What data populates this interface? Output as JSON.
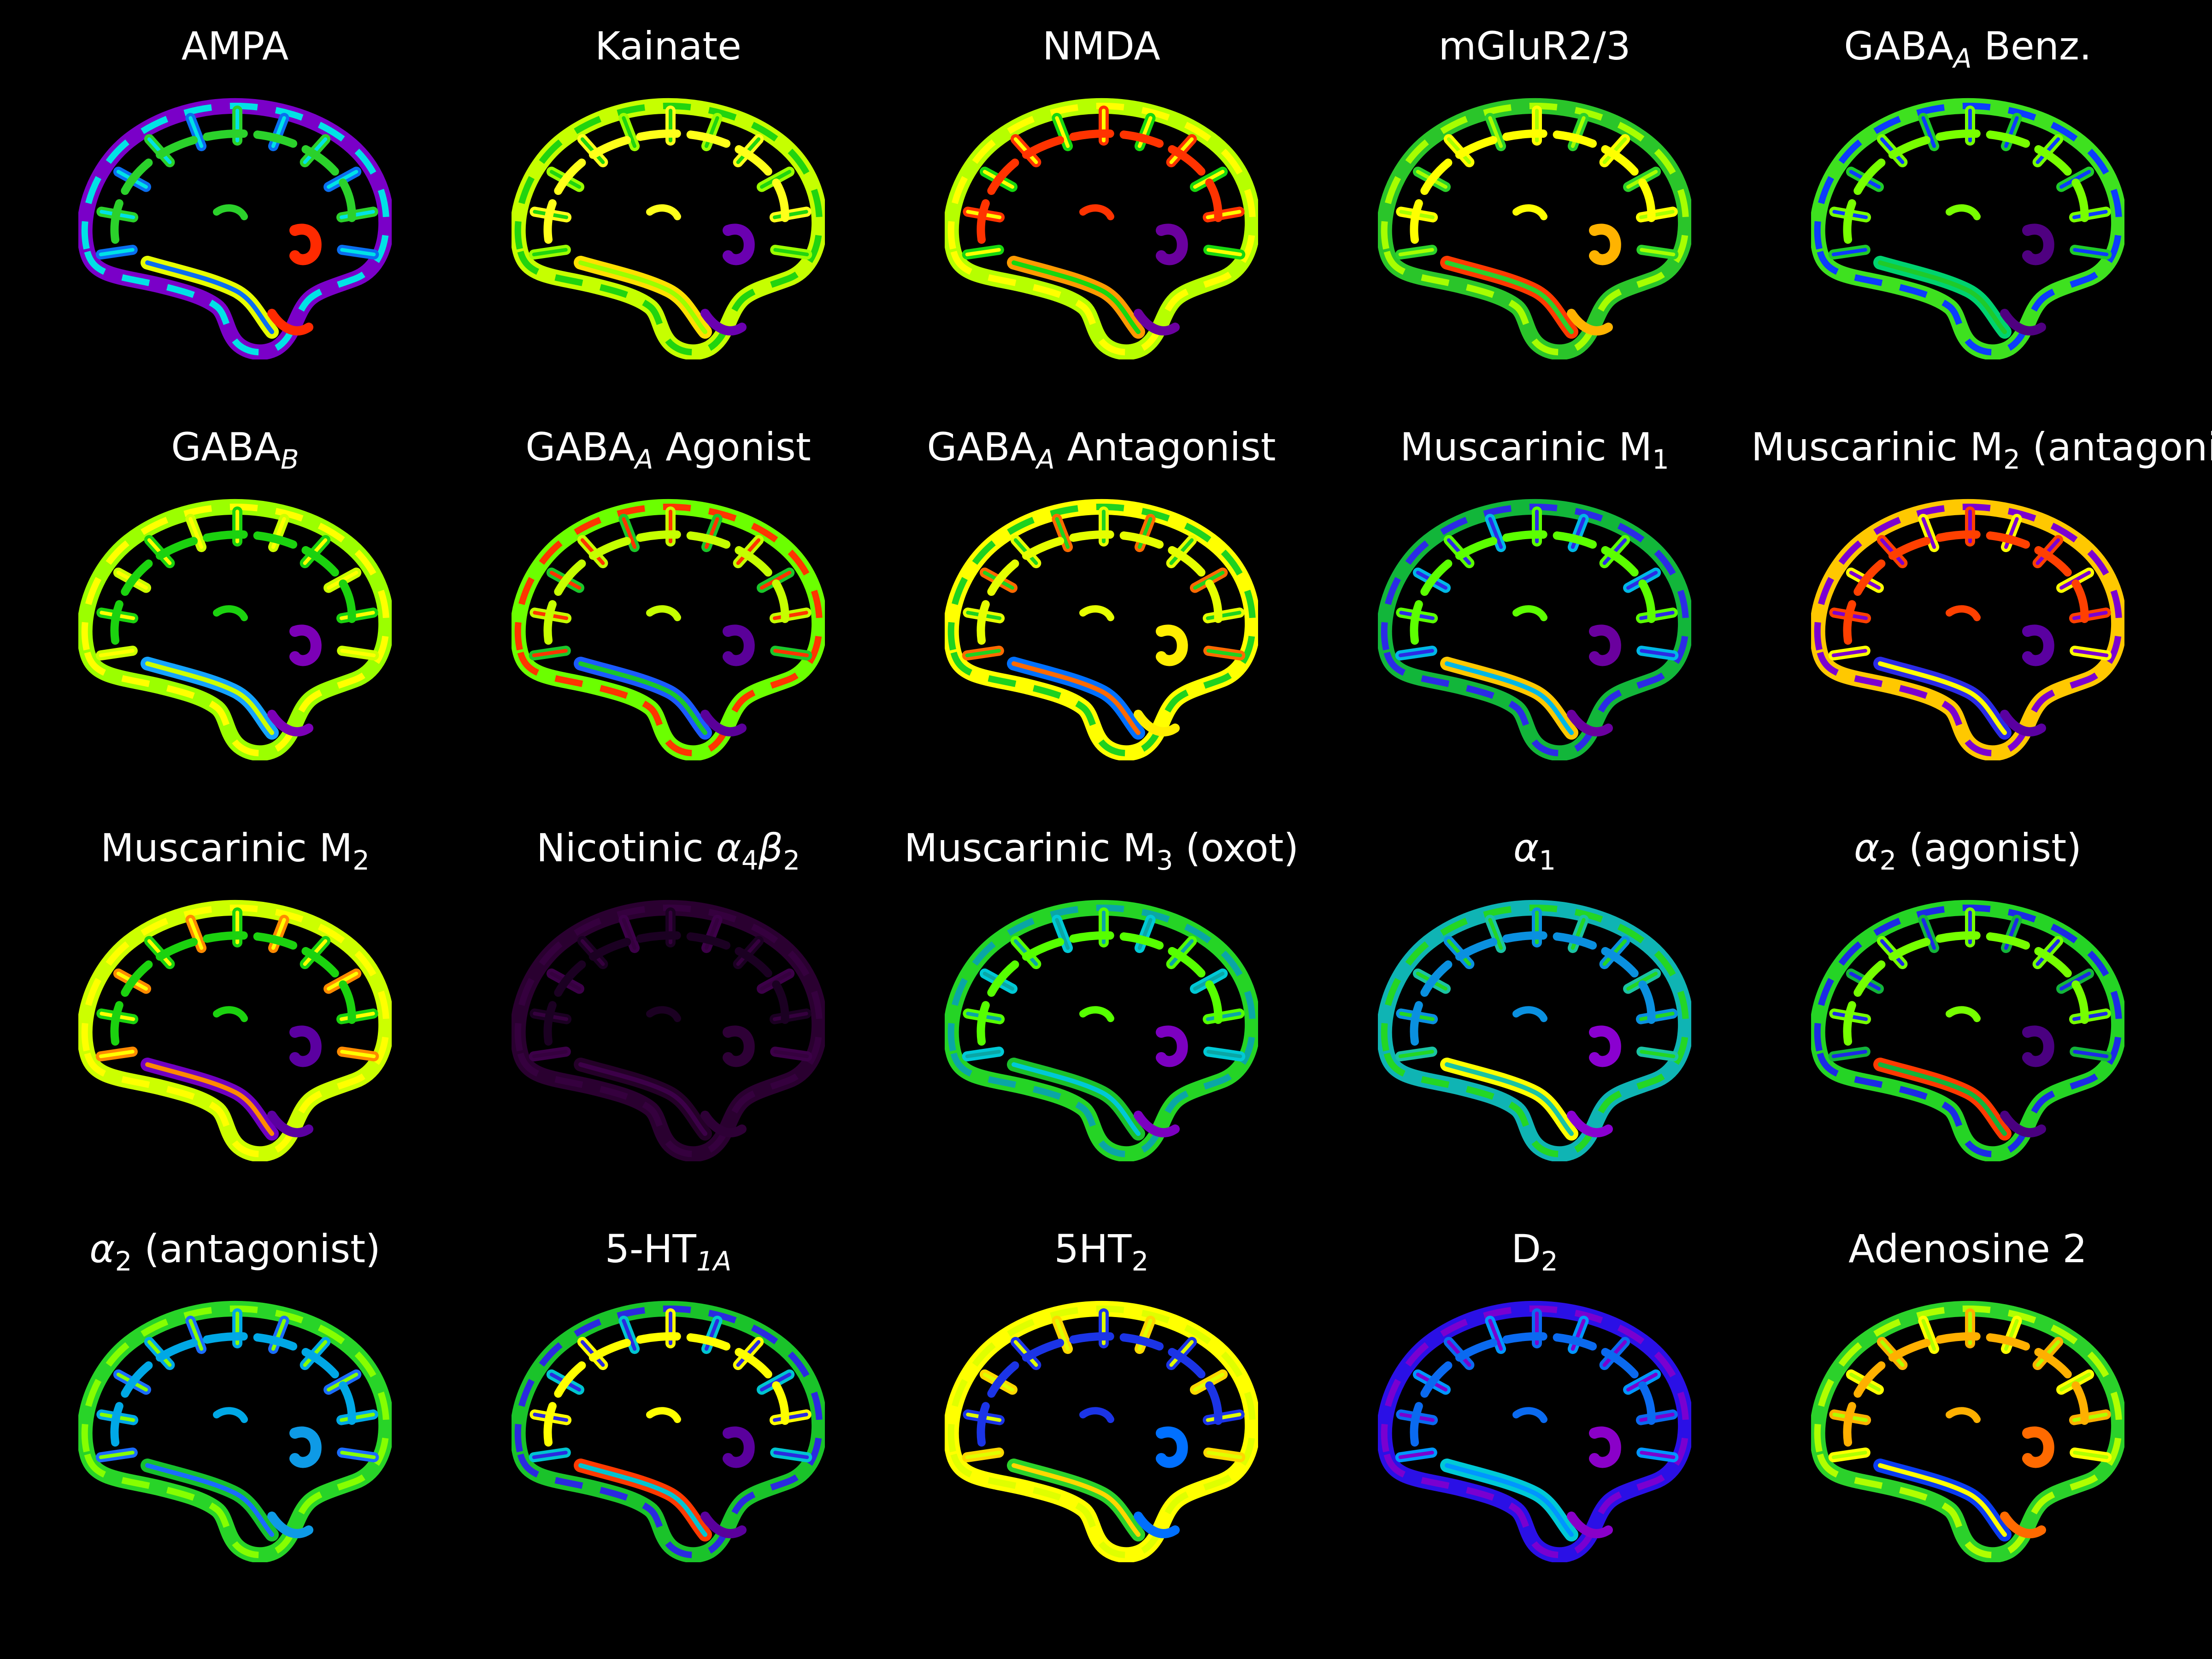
{
  "panels": [
    {
      "title": {
        "pre": "AMPA",
        "sub": "",
        "post": ""
      },
      "colors": {
        "outer": "#7a00c8",
        "band1": "#00e2e6",
        "band2": "#2bd12b",
        "band3": "#0a6ef0",
        "band4": "#e6ff00",
        "inner": "#ff2a00"
      }
    },
    {
      "title": {
        "pre": "Kainate",
        "sub": "",
        "post": ""
      },
      "colors": {
        "outer": "#c6ff00",
        "band1": "#21d40f",
        "band2": "#ffff1a",
        "band3": "#9cff00",
        "band4": "#ffe000",
        "inner": "#6a00b0"
      }
    },
    {
      "title": {
        "pre": "NMDA",
        "sub": "",
        "post": ""
      },
      "colors": {
        "outer": "#b6ff00",
        "band1": "#ffff00",
        "band2": "#ff3300",
        "band3": "#17d70f",
        "band4": "#ff9a00",
        "inner": "#6a009e"
      }
    },
    {
      "title": {
        "pre": "mGluR2/3",
        "sub": "",
        "post": ""
      },
      "colors": {
        "outer": "#2ac52a",
        "band1": "#a7ff00",
        "band2": "#ffff00",
        "band3": "#2bd12b",
        "band4": "#ff3a00",
        "inner": "#ffb300"
      }
    },
    {
      "title": {
        "pre": "GABA",
        "sub": "A",
        "subItalic": true,
        "post": " Benz."
      },
      "colors": {
        "outer": "#3ee11f",
        "band1": "#0b3cff",
        "band2": "#78ff00",
        "band3": "#1fca2a",
        "band4": "#00d36f",
        "inner": "#4f0080"
      }
    },
    {
      "title": {
        "pre": "GABA",
        "sub": "B",
        "subItalic": true,
        "post": ""
      },
      "colors": {
        "outer": "#9bff00",
        "band1": "#ffff00",
        "band2": "#1bd20f",
        "band3": "#ccff00",
        "band4": "#15a3ff",
        "inner": "#7c00b6"
      }
    },
    {
      "title": {
        "pre": "GABA",
        "sub": "A",
        "subItalic": true,
        "post": " Agonist"
      },
      "colors": {
        "outer": "#6bff00",
        "band1": "#ff3500",
        "band2": "#c6ff00",
        "band3": "#1ac62a",
        "band4": "#1b5aff",
        "inner": "#5a0099"
      }
    },
    {
      "title": {
        "pre": "GABA",
        "sub": "A",
        "subItalic": true,
        "post": " Antagonist"
      },
      "colors": {
        "outer": "#ffff00",
        "band1": "#1fd21f",
        "band2": "#e6ff00",
        "band3": "#ff6a00",
        "band4": "#0070ff",
        "inner": "#ffee00"
      }
    },
    {
      "title": {
        "pre": "Muscarinic M",
        "sub": "1",
        "subItalic": false,
        "post": ""
      },
      "colors": {
        "outer": "#12b63a",
        "band1": "#2b2be6",
        "band2": "#5cff00",
        "band3": "#00b7e6",
        "band4": "#ffc800",
        "inner": "#6a009e"
      }
    },
    {
      "title": {
        "pre": "Muscarinic M",
        "sub": "2",
        "subItalic": false,
        "post": " (antagonist)"
      },
      "colors": {
        "outer": "#ffc800",
        "band1": "#7c00d0",
        "band2": "#ff4000",
        "band3": "#ffff00",
        "band4": "#2b2be6",
        "inner": "#5a00a0"
      }
    },
    {
      "title": {
        "pre": "Muscarinic M",
        "sub": "2",
        "subItalic": false,
        "post": ""
      },
      "colors": {
        "outer": "#ccff00",
        "band1": "#ffff00",
        "band2": "#1bd20f",
        "band3": "#ff8a00",
        "band4": "#7000c0",
        "inner": "#5b00a0"
      }
    },
    {
      "title": {
        "pre": "Nicotinic ",
        "greek": "α",
        "sub": "4",
        "subItalic": false,
        "greek2": "β",
        "sub2": "2",
        "post": ""
      },
      "colors": {
        "outer": "#2a0030",
        "band1": "#35003e",
        "band2": "#1b0022",
        "band3": "#3c0048",
        "band4": "#240028",
        "inner": "#2e0036"
      }
    },
    {
      "title": {
        "pre": "Muscarinic M",
        "sub": "3",
        "subItalic": false,
        "post": " (oxot)"
      },
      "colors": {
        "outer": "#25d425",
        "band1": "#0aa6a6",
        "band2": "#56ff00",
        "band3": "#00c9d6",
        "band4": "#1bc02b",
        "inner": "#7c00c0"
      }
    },
    {
      "title": {
        "pre": "",
        "greek": "α",
        "sub": "1",
        "subItalic": false,
        "post": ""
      },
      "colors": {
        "outer": "#0fb4b4",
        "band1": "#24d624",
        "band2": "#0a90e0",
        "band3": "#1ac3a3",
        "band4": "#ffff00",
        "inner": "#8a00d0"
      }
    },
    {
      "title": {
        "pre": "",
        "greek": "α",
        "sub": "2",
        "subItalic": false,
        "post": " (agonist)"
      },
      "colors": {
        "outer": "#25d425",
        "band1": "#1b2be6",
        "band2": "#76ff00",
        "band3": "#12b43a",
        "band4": "#ff3a00",
        "inner": "#4a0080"
      }
    },
    {
      "title": {
        "pre": "",
        "greek": "α",
        "sub": "2",
        "subItalic": false,
        "post": " (antagonist)"
      },
      "colors": {
        "outer": "#28d428",
        "band1": "#86ff00",
        "band2": "#00a8e6",
        "band3": "#1a6cff",
        "band4": "#16c02e",
        "inner": "#0e9ae6"
      }
    },
    {
      "title": {
        "pre": "5-HT",
        "sub": "1A",
        "subItalic": true,
        "post": ""
      },
      "colors": {
        "outer": "#1ac32a",
        "band1": "#2a2ae0",
        "band2": "#ffff00",
        "band3": "#00c4d0",
        "band4": "#ff3a00",
        "inner": "#5a009c"
      }
    },
    {
      "title": {
        "pre": "5HT",
        "sub": "2",
        "subItalic": false,
        "post": ""
      },
      "colors": {
        "outer": "#ffff00",
        "band1": "#dfff00",
        "band2": "#1b34e6",
        "band3": "#ffd800",
        "band4": "#2bd12b",
        "inner": "#0070ff"
      }
    },
    {
      "title": {
        "pre": "D",
        "sub": "2",
        "subItalic": false,
        "post": ""
      },
      "colors": {
        "outer": "#2a10e6",
        "band1": "#7a00d0",
        "band2": "#0a6af0",
        "band3": "#0096ff",
        "band4": "#00c9d6",
        "inner": "#8a00c8"
      }
    },
    {
      "title": {
        "pre": "Adenosine 2",
        "sub": "",
        "post": ""
      },
      "colors": {
        "outer": "#2bd12b",
        "band1": "#b0ff00",
        "band2": "#ffb000",
        "band3": "#ffff00",
        "band4": "#0a3cf0",
        "inner": "#ff6a00"
      }
    }
  ]
}
